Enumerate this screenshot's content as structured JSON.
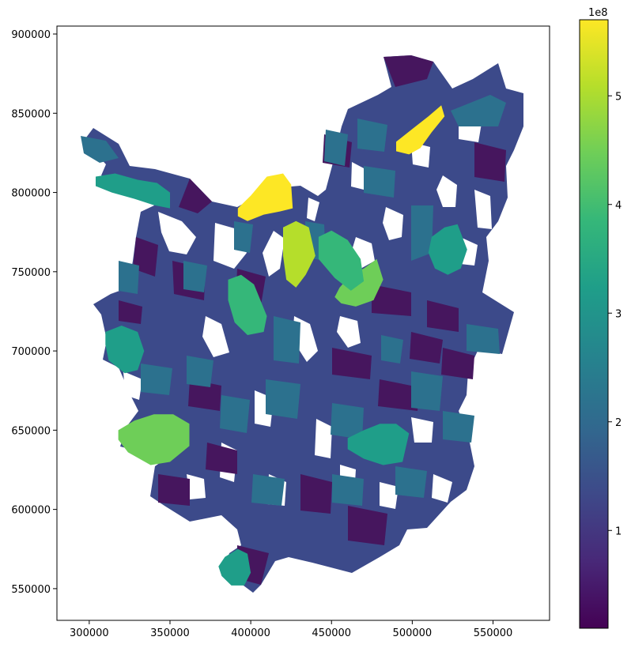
{
  "chart_data": {
    "type": "heatmap",
    "title": "",
    "xlabel": "",
    "ylabel": "",
    "xlim": [
      280000,
      585000
    ],
    "ylim": [
      530000,
      905000
    ],
    "x_ticks": [
      300000,
      350000,
      400000,
      450000,
      500000,
      550000
    ],
    "x_tick_labels": [
      "300000",
      "350000",
      "400000",
      "450000",
      "500000",
      "550000"
    ],
    "y_ticks": [
      550000,
      600000,
      650000,
      700000,
      750000,
      800000,
      850000,
      900000
    ],
    "y_tick_labels": [
      "550000",
      "600000",
      "650000",
      "700000",
      "750000",
      "800000",
      "850000",
      "900000"
    ],
    "colorbar": {
      "colormap": "viridis",
      "vmin": 10000000,
      "vmax": 570000000,
      "ticks": [
        1,
        2,
        3,
        4,
        5
      ],
      "tick_labels": [
        "1",
        "2",
        "3",
        "4",
        "5"
      ],
      "multiplier_label": "1e8",
      "colors": [
        "#440154",
        "#482878",
        "#3e4989",
        "#31688e",
        "#26828e",
        "#1f9e89",
        "#35b779",
        "#6ece58",
        "#b5de2b",
        "#fde725"
      ]
    },
    "regions": [
      {
        "name": "north-east-yellow-block",
        "x": [
          490000,
          500000,
          510000,
          518000,
          520000,
          512000,
          505000,
          498000,
          490000
        ],
        "y": [
          832000,
          840000,
          848000,
          855000,
          848000,
          838000,
          828000,
          824000,
          826000
        ],
        "value": 560000000
      },
      {
        "name": "north-central-yellow-block",
        "x": [
          392000,
          400000,
          410000,
          420000,
          425000,
          426000,
          418000,
          408000,
          398000,
          392000
        ],
        "y": [
          790000,
          798000,
          810000,
          812000,
          805000,
          790000,
          788000,
          786000,
          782000,
          785000
        ],
        "value": 565000000
      },
      {
        "name": "central-lime-strip",
        "x": [
          420000,
          428000,
          436000,
          440000,
          434000,
          428000,
          422000,
          420000
        ],
        "y": [
          778000,
          782000,
          778000,
          760000,
          748000,
          740000,
          745000,
          760000
        ],
        "value": 490000000
      },
      {
        "name": "west-green-lobe",
        "x": [
          318000,
          328000,
          340000,
          352000,
          362000,
          362000,
          350000,
          338000,
          324000,
          318000
        ],
        "y": [
          650000,
          656000,
          660000,
          660000,
          654000,
          640000,
          630000,
          628000,
          636000,
          644000
        ],
        "value": 420000000
      },
      {
        "name": "central-east-green-strip",
        "x": [
          455000,
          462000,
          470000,
          478000,
          482000,
          476000,
          465000,
          456000,
          452000
        ],
        "y": [
          740000,
          748000,
          752000,
          758000,
          745000,
          732000,
          728000,
          730000,
          734000
        ],
        "value": 440000000
      },
      {
        "name": "mid-west-green-block",
        "x": [
          386000,
          394000,
          402000,
          410000,
          408000,
          398000,
          390000,
          386000
        ],
        "y": [
          745000,
          748000,
          742000,
          722000,
          712000,
          710000,
          718000,
          732000
        ],
        "value": 410000000
      },
      {
        "name": "south-center-teal-block",
        "x": [
          460000,
          470000,
          480000,
          490000,
          498000,
          494000,
          482000,
          470000,
          460000
        ],
        "y": [
          645000,
          650000,
          654000,
          654000,
          648000,
          630000,
          628000,
          632000,
          638000
        ],
        "value": 300000000
      },
      {
        "name": "south-west-teal-block",
        "x": [
          384000,
          392000,
          398000,
          400000,
          396000,
          388000,
          382000,
          380000
        ],
        "y": [
          570000,
          575000,
          572000,
          560000,
          552000,
          552000,
          558000,
          564000
        ],
        "value": 290000000
      },
      {
        "name": "north-west-teal-strip",
        "x": [
          304000,
          316000,
          330000,
          342000,
          350000,
          350000,
          340000,
          328000,
          314000,
          304000
        ],
        "y": [
          810000,
          812000,
          808000,
          806000,
          800000,
          790000,
          792000,
          796000,
          800000,
          804000
        ],
        "value": 310000000
      },
      {
        "name": "east-teal-block",
        "x": [
          512000,
          520000,
          528000,
          534000,
          530000,
          522000,
          514000,
          510000
        ],
        "y": [
          772000,
          778000,
          780000,
          764000,
          752000,
          748000,
          752000,
          762000
        ],
        "value": 320000000
      },
      {
        "name": "west-central-teal-block",
        "x": [
          310000,
          320000,
          330000,
          334000,
          330000,
          322000,
          312000,
          310000
        ],
        "y": [
          712000,
          716000,
          712000,
          700000,
          688000,
          686000,
          694000,
          704000
        ],
        "value": 330000000
      },
      {
        "name": "central-green-teal-block",
        "x": [
          442000,
          450000,
          460000,
          468000,
          470000,
          462000,
          452000,
          442000
        ],
        "y": [
          772000,
          776000,
          770000,
          758000,
          744000,
          738000,
          746000,
          758000
        ],
        "value": 370000000
      }
    ]
  }
}
